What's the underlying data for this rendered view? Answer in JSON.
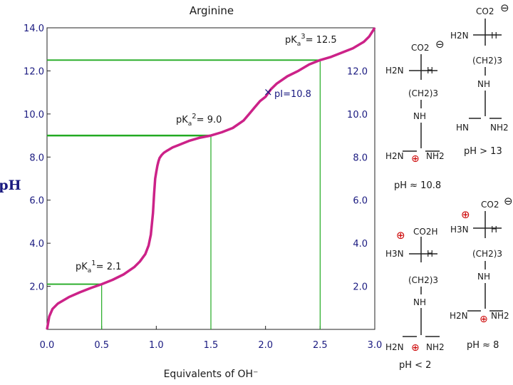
{
  "chart_data": {
    "type": "line",
    "title": "Arginine",
    "xlabel": "Equivalents of OH⁻",
    "ylabel": "pH",
    "xlim": [
      0,
      3
    ],
    "ylim": [
      0,
      14
    ],
    "xticks": [
      "0.0",
      "0.5",
      "1.0",
      "1.5",
      "2.0",
      "2.5",
      "3.0"
    ],
    "yticks": [
      "2.0",
      "4.0",
      "6.0",
      "8.0",
      "10.0",
      "12.0",
      "14.0"
    ],
    "grid": false,
    "series": [
      {
        "color": "#cc2288",
        "x": [
          0.0,
          0.02,
          0.05,
          0.1,
          0.15,
          0.2,
          0.3,
          0.4,
          0.5,
          0.6,
          0.7,
          0.8,
          0.85,
          0.9,
          0.93,
          0.95,
          0.97,
          0.98,
          0.99,
          1.0,
          1.01,
          1.02,
          1.03,
          1.05,
          1.07,
          1.1,
          1.15,
          1.2,
          1.3,
          1.4,
          1.5,
          1.6,
          1.7,
          1.8,
          1.85,
          1.9,
          1.95,
          2.0,
          2.05,
          2.1,
          2.2,
          2.3,
          2.4,
          2.5,
          2.6,
          2.7,
          2.8,
          2.9,
          2.95,
          3.0
        ],
        "y": [
          0.0,
          0.6,
          0.95,
          1.2,
          1.35,
          1.5,
          1.72,
          1.92,
          2.1,
          2.3,
          2.55,
          2.9,
          3.15,
          3.5,
          3.9,
          4.4,
          5.4,
          6.3,
          7.0,
          7.3,
          7.6,
          7.8,
          7.95,
          8.1,
          8.2,
          8.3,
          8.45,
          8.55,
          8.75,
          8.9,
          9.0,
          9.15,
          9.35,
          9.7,
          10.0,
          10.3,
          10.6,
          10.8,
          11.15,
          11.4,
          11.75,
          12.0,
          12.3,
          12.5,
          12.65,
          12.85,
          13.05,
          13.35,
          13.6,
          14.0
        ]
      }
    ],
    "reference_lines": [
      {
        "x": 0.5,
        "y": 2.1
      },
      {
        "x": 1.5,
        "y": 9.0
      },
      {
        "x": 2.5,
        "y": 12.5
      }
    ],
    "annotations": {
      "pka1": "pKa1= 2.1",
      "pka2": "pKa2= 9.0",
      "pka3": "pKa3= 12.5",
      "pi": "pI=10.8"
    },
    "pi_point": {
      "x": 2.0,
      "y": 10.8
    }
  },
  "structures": {
    "ph_lt_2": "pH < 2",
    "ph_approx_8": "pH ≈ 8",
    "ph_approx_10_8": "pH ≈ 10.8",
    "ph_gt_13": "pH > 13"
  },
  "colors": {
    "curve": "#cc2288",
    "guide": "#22aa22",
    "tick_text": "#1a1a80",
    "charge": "#cc0000"
  }
}
